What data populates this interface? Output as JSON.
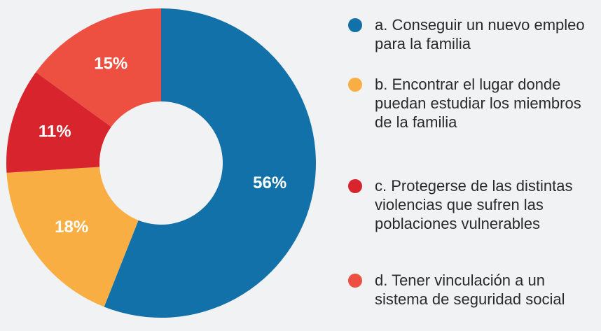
{
  "chart_data": {
    "type": "pie",
    "categories": [
      "a. Conseguir un nuevo empleo para la familia",
      "b. Encontrar el lugar donde puedan estudiar los miembros de la familia",
      "c. Protegerse de las distintas violencias que sufren las poblaciones vulnerables",
      "d. Tener vinculación a un sistema de seguridad social"
    ],
    "values": [
      56,
      18,
      11,
      15
    ],
    "value_labels": [
      "56%",
      "18%",
      "11%",
      "15%"
    ],
    "colors": [
      "#1271a8",
      "#f9ae43",
      "#d8252d",
      "#ed5040"
    ],
    "legend": "right"
  }
}
